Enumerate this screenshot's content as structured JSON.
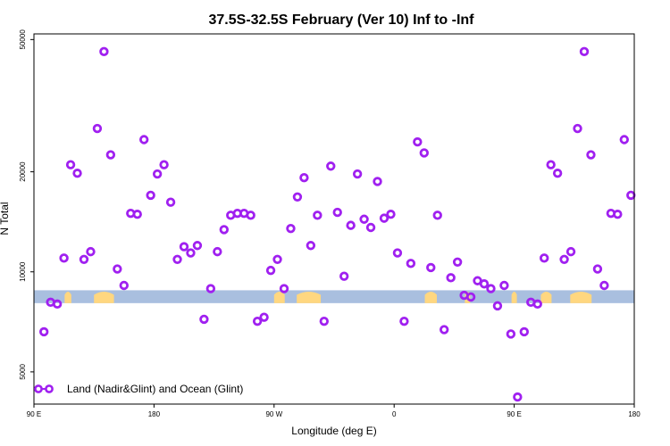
{
  "chart_data": {
    "type": "scatter",
    "title": "37.5S-32.5S February (Ver 10)   Inf to -Inf",
    "xlabel": "Longitude (deg E)",
    "ylabel": "N Total",
    "x_scale": "linear",
    "y_scale": "log",
    "xlim": [
      90,
      540
    ],
    "ylim": [
      4000,
      52000
    ],
    "x_ticks": [
      {
        "value": 90,
        "label": "90 E"
      },
      {
        "value": 180,
        "label": "180"
      },
      {
        "value": 270,
        "label": "90 W"
      },
      {
        "value": 360,
        "label": "0"
      },
      {
        "value": 450,
        "label": "90 E"
      },
      {
        "value": 540,
        "label": "180"
      }
    ],
    "y_ticks": [
      {
        "value": 5000,
        "label": "5000"
      },
      {
        "value": 10000,
        "label": "10000"
      },
      {
        "value": 20000,
        "label": "20000"
      },
      {
        "value": 50000,
        "label": "50000"
      }
    ],
    "series": [
      {
        "name": "Land (Nadir&Glint) and Ocean (Glint)",
        "color": "#a020f0",
        "marker": "open-circle",
        "x": [
          97.5,
          102.5,
          107.5,
          112.5,
          117.5,
          122.5,
          127.5,
          132.5,
          137.5,
          142.5,
          147.5,
          152.5,
          157.5,
          162.5,
          167.5,
          172.5,
          177.5,
          182.5,
          187.5,
          192.5,
          197.5,
          202.5,
          207.5,
          212.5,
          217.5,
          222.5,
          227.5,
          232.5,
          237.5,
          242.5,
          247.5,
          252.5,
          257.5,
          262.5,
          267.5,
          272.5,
          277.5,
          282.5,
          287.5,
          292.5,
          297.5,
          302.5,
          307.5,
          312.5,
          317.5,
          322.5,
          327.5,
          332.5,
          337.5,
          342.5,
          347.5,
          352.5,
          357.5,
          362.5,
          367.5,
          372.5,
          377.5,
          382.5,
          387.5,
          392.5,
          397.5,
          402.5,
          407.5,
          412.5,
          417.5,
          422.5,
          427.5,
          432.5,
          437.5,
          442.5,
          447.5,
          452.5,
          457.5,
          462.5,
          467.5,
          472.5,
          477.5,
          482.5,
          487.5,
          492.5,
          497.5,
          502.5,
          507.5,
          512.5,
          517.5,
          522.5,
          527.5,
          532.5,
          537.5
        ],
        "y": [
          6600,
          8100,
          8000,
          11000,
          21000,
          19800,
          10900,
          11500,
          27000,
          46000,
          22500,
          10200,
          9100,
          15000,
          14900,
          25000,
          17000,
          19700,
          21000,
          16200,
          10900,
          11900,
          11400,
          12000,
          7200,
          8900,
          11500,
          13400,
          14800,
          15000,
          15000,
          14800,
          7100,
          7300,
          10100,
          10900,
          8900,
          13500,
          16800,
          19200,
          12000,
          14800,
          7100,
          20800,
          15100,
          9700,
          13800,
          19700,
          14400,
          13600,
          18700,
          14500,
          14900,
          11400,
          7100,
          10600,
          24600,
          22800,
          10300,
          14800,
          6700,
          9600,
          10700,
          8500,
          8400,
          9400,
          9200,
          8900,
          7900,
          9100,
          6500,
          4200,
          6600,
          8100,
          8000,
          11000,
          21000,
          19800,
          10900,
          11500,
          27000,
          46000,
          22500,
          10200,
          9100,
          15000,
          14900,
          25000,
          17000
        ]
      }
    ],
    "legend": {
      "position": "bottom-left",
      "entries": [
        "Land (Nadir&Glint) and Ocean (Glint)"
      ]
    },
    "annotations": [
      "surface-type strip: ocean (light blue) with land segments (yellow)"
    ],
    "surface_strip": {
      "band_y_range": [
        8050,
        8800
      ],
      "land_segments": [
        [
          113,
          118
        ],
        [
          135,
          150
        ],
        [
          270,
          278
        ],
        [
          287,
          305
        ],
        [
          383,
          392
        ],
        [
          413,
          417
        ],
        [
          448,
          452
        ],
        [
          470,
          478
        ],
        [
          492,
          508
        ]
      ]
    },
    "colors": {
      "ocean": "#a9bfdf",
      "land": "#ffd780",
      "marker": "#a020f0",
      "axis": "#000000"
    }
  }
}
